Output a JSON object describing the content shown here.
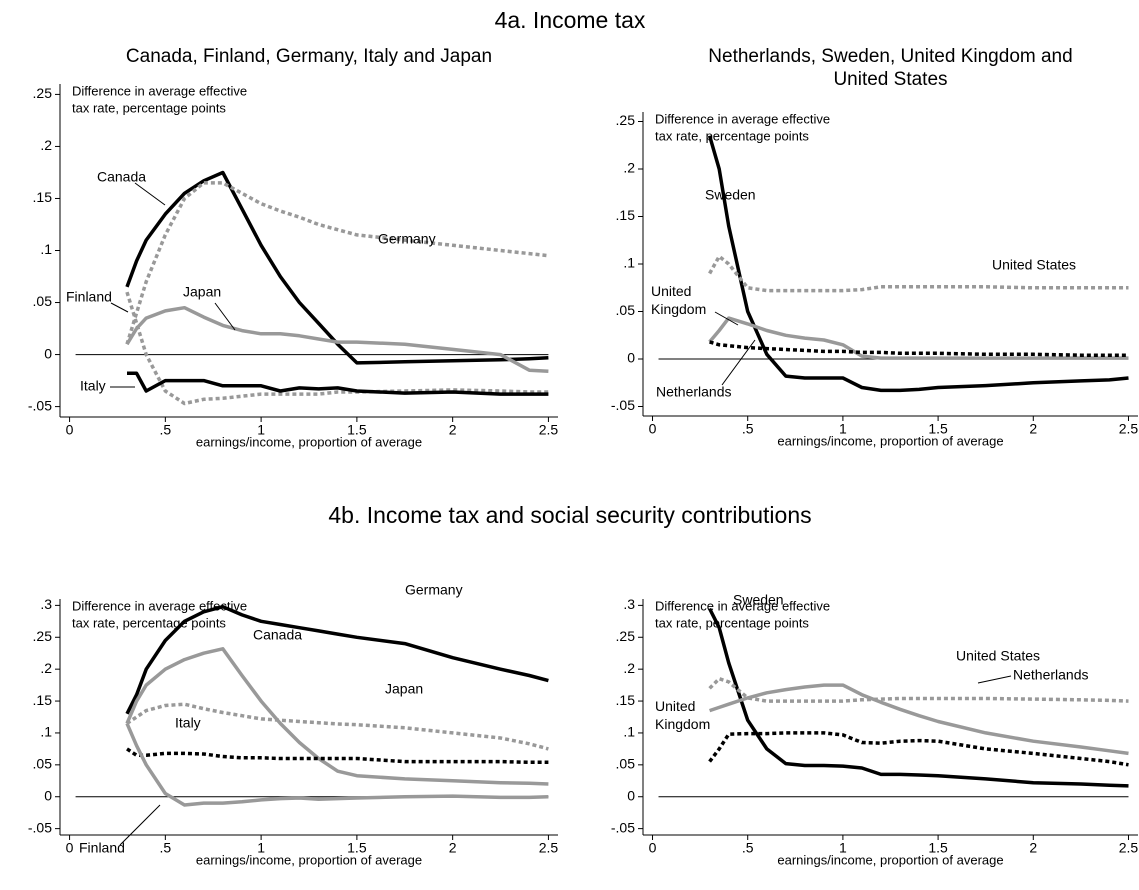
{
  "sections": [
    {
      "title": "4a. Income tax"
    },
    {
      "title": "4b. Income tax and social security contributions"
    }
  ],
  "chart_data": [
    {
      "type": "line",
      "subtitle": "Canada, Finland, Germany, Italy and Japan",
      "annotation": [
        "Difference in average effective",
        "tax rate, percentage points"
      ],
      "xlabel": "earnings/income, proportion of average",
      "x": [
        0.3,
        0.35,
        0.4,
        0.5,
        0.6,
        0.7,
        0.8,
        0.9,
        1.0,
        1.1,
        1.2,
        1.3,
        1.4,
        1.5,
        1.75,
        2.0,
        2.25,
        2.4,
        2.5
      ],
      "xlim": [
        -0.05,
        2.55
      ],
      "xticks": [
        0,
        {
          "value": 0.5,
          "label": ".5"
        },
        1,
        1.5,
        2,
        2.5
      ],
      "ylim": [
        -0.06,
        0.26
      ],
      "yticks": [
        {
          "value": -0.05,
          "label": "-.05"
        },
        0,
        {
          "value": 0.05,
          "label": ".05"
        },
        {
          "value": 0.1,
          "label": ".1"
        },
        {
          "value": 0.15,
          "label": ".15"
        },
        {
          "value": 0.2,
          "label": ".2"
        },
        {
          "value": 0.25,
          "label": ".25"
        }
      ],
      "hline": 0,
      "series": [
        {
          "name": "Canada",
          "color": "#000000",
          "dashed": false,
          "values": [
            0.065,
            0.09,
            0.11,
            0.135,
            0.155,
            0.167,
            0.175,
            0.14,
            0.105,
            0.075,
            0.05,
            0.03,
            0.01,
            -0.008,
            -0.007,
            -0.006,
            -0.005,
            -0.004,
            -0.003
          ]
        },
        {
          "name": "Germany",
          "color": "#999999",
          "dashed": true,
          "values": [
            0.01,
            0.04,
            0.07,
            0.115,
            0.15,
            0.165,
            0.165,
            0.155,
            0.145,
            0.138,
            0.132,
            0.125,
            0.12,
            0.115,
            0.11,
            0.105,
            0.1,
            0.097,
            0.095
          ]
        },
        {
          "name": "Finland",
          "color": "#999999",
          "dashed": true,
          "values": [
            0.06,
            0.03,
            0.0,
            -0.035,
            -0.047,
            -0.043,
            -0.042,
            -0.04,
            -0.038,
            -0.038,
            -0.038,
            -0.038,
            -0.036,
            -0.036,
            -0.035,
            -0.034,
            -0.035,
            -0.036,
            -0.036
          ]
        },
        {
          "name": "Japan",
          "color": "#999999",
          "dashed": false,
          "values": [
            0.01,
            0.025,
            0.035,
            0.042,
            0.045,
            0.036,
            0.028,
            0.023,
            0.02,
            0.02,
            0.018,
            0.015,
            0.012,
            0.012,
            0.01,
            0.005,
            0.0,
            -0.015,
            -0.016
          ]
        },
        {
          "name": "Italy",
          "color": "#000000",
          "dashed": false,
          "values": [
            -0.018,
            -0.018,
            -0.035,
            -0.025,
            -0.025,
            -0.025,
            -0.03,
            -0.03,
            -0.03,
            -0.035,
            -0.032,
            -0.033,
            -0.032,
            -0.035,
            -0.037,
            -0.036,
            -0.038,
            -0.038,
            -0.038
          ]
        }
      ]
    },
    {
      "type": "line",
      "subtitle": [
        "Netherlands, Sweden, United Kingdom and",
        "United States"
      ],
      "annotation": [
        "Difference in average effective",
        "tax rate, percentage points"
      ],
      "xlabel": "earnings/income, proportion of average",
      "x": [
        0.3,
        0.35,
        0.4,
        0.5,
        0.6,
        0.7,
        0.8,
        0.9,
        1.0,
        1.1,
        1.2,
        1.3,
        1.4,
        1.5,
        1.75,
        2.0,
        2.25,
        2.4,
        2.5
      ],
      "xlim": [
        -0.05,
        2.55
      ],
      "xticks": [
        0,
        {
          "value": 0.5,
          "label": ".5"
        },
        1,
        1.5,
        2,
        2.5
      ],
      "ylim": [
        -0.06,
        0.26
      ],
      "yticks": [
        {
          "value": -0.05,
          "label": "-.05"
        },
        0,
        {
          "value": 0.05,
          "label": ".05"
        },
        {
          "value": 0.1,
          "label": ".1"
        },
        {
          "value": 0.15,
          "label": ".15"
        },
        {
          "value": 0.2,
          "label": ".2"
        },
        {
          "value": 0.25,
          "label": ".25"
        }
      ],
      "hline": 0,
      "series": [
        {
          "name": "Sweden",
          "color": "#000000",
          "dashed": false,
          "values": [
            0.235,
            0.2,
            0.14,
            0.05,
            0.005,
            -0.018,
            -0.02,
            -0.02,
            -0.02,
            -0.03,
            -0.033,
            -0.033,
            -0.032,
            -0.03,
            -0.028,
            -0.025,
            -0.023,
            -0.022,
            -0.02
          ]
        },
        {
          "name": "United States",
          "color": "#999999",
          "dashed": true,
          "values": [
            0.09,
            0.108,
            0.1,
            0.075,
            0.072,
            0.072,
            0.072,
            0.072,
            0.072,
            0.073,
            0.076,
            0.076,
            0.076,
            0.076,
            0.076,
            0.075,
            0.075,
            0.075,
            0.075
          ]
        },
        {
          "name": "United Kingdom",
          "color": "#999999",
          "dashed": false,
          "values": [
            0.018,
            0.03,
            0.043,
            0.037,
            0.03,
            0.025,
            0.022,
            0.02,
            0.015,
            0.003,
            0.001,
            0.001,
            0.001,
            0.001,
            0.001,
            0.001,
            0.001,
            0.001,
            0.001
          ]
        },
        {
          "name": "Netherlands",
          "color": "#000000",
          "dashed": true,
          "values": [
            0.018,
            0.015,
            0.014,
            0.012,
            0.011,
            0.01,
            0.009,
            0.008,
            0.008,
            0.007,
            0.007,
            0.006,
            0.006,
            0.006,
            0.005,
            0.005,
            0.004,
            0.004,
            0.004
          ]
        }
      ]
    },
    {
      "type": "line",
      "subtitle": null,
      "annotation": [
        "Difference in average effective",
        "tax rate, percentage points"
      ],
      "xlabel": "earnings/income, proportion of average",
      "x": [
        0.3,
        0.35,
        0.4,
        0.5,
        0.6,
        0.7,
        0.8,
        0.9,
        1.0,
        1.1,
        1.2,
        1.3,
        1.4,
        1.5,
        1.75,
        2.0,
        2.25,
        2.4,
        2.5
      ],
      "xlim": [
        -0.05,
        2.55
      ],
      "xticks": [
        0,
        {
          "value": 0.5,
          "label": ".5"
        },
        1,
        1.5,
        2,
        2.5
      ],
      "ylim": [
        -0.06,
        0.31
      ],
      "yticks": [
        {
          "value": -0.05,
          "label": "-.05"
        },
        0,
        {
          "value": 0.05,
          "label": ".05"
        },
        {
          "value": 0.1,
          "label": ".1"
        },
        {
          "value": 0.15,
          "label": ".15"
        },
        {
          "value": 0.2,
          "label": ".2"
        },
        {
          "value": 0.25,
          "label": ".25"
        },
        {
          "value": 0.3,
          "label": ".3"
        }
      ],
      "hline": 0,
      "series": [
        {
          "name": "Germany",
          "color": "#000000",
          "dashed": false,
          "values": [
            0.13,
            0.16,
            0.2,
            0.245,
            0.275,
            0.29,
            0.298,
            0.285,
            0.275,
            0.27,
            0.265,
            0.26,
            0.255,
            0.25,
            0.24,
            0.218,
            0.2,
            0.19,
            0.182
          ]
        },
        {
          "name": "Canada",
          "color": "#999999",
          "dashed": false,
          "values": [
            0.115,
            0.15,
            0.175,
            0.2,
            0.215,
            0.225,
            0.232,
            0.19,
            0.15,
            0.115,
            0.085,
            0.06,
            0.04,
            0.033,
            0.028,
            0.025,
            0.022,
            0.021,
            0.02
          ]
        },
        {
          "name": "Japan",
          "color": "#999999",
          "dashed": true,
          "values": [
            0.115,
            0.125,
            0.135,
            0.143,
            0.145,
            0.138,
            0.132,
            0.127,
            0.122,
            0.12,
            0.118,
            0.116,
            0.114,
            0.113,
            0.108,
            0.1,
            0.092,
            0.083,
            0.075
          ]
        },
        {
          "name": "Italy",
          "color": "#000000",
          "dashed": true,
          "values": [
            0.075,
            0.065,
            0.065,
            0.068,
            0.068,
            0.067,
            0.063,
            0.061,
            0.061,
            0.06,
            0.06,
            0.06,
            0.06,
            0.06,
            0.055,
            0.055,
            0.055,
            0.054,
            0.054
          ]
        },
        {
          "name": "Finland",
          "color": "#999999",
          "dashed": false,
          "values": [
            0.115,
            0.08,
            0.05,
            0.005,
            -0.013,
            -0.01,
            -0.01,
            -0.008,
            -0.005,
            -0.003,
            -0.002,
            -0.004,
            -0.003,
            -0.002,
            0.0,
            0.001,
            -0.001,
            -0.001,
            0.0
          ]
        }
      ]
    },
    {
      "type": "line",
      "subtitle": null,
      "annotation": [
        "Difference in average effective",
        "tax rate, percentage points"
      ],
      "xlabel": "earnings/income, proportion of average",
      "x": [
        0.3,
        0.35,
        0.4,
        0.5,
        0.6,
        0.7,
        0.8,
        0.9,
        1.0,
        1.1,
        1.2,
        1.3,
        1.4,
        1.5,
        1.75,
        2.0,
        2.25,
        2.4,
        2.5
      ],
      "xlim": [
        -0.05,
        2.55
      ],
      "xticks": [
        0,
        {
          "value": 0.5,
          "label": ".5"
        },
        1,
        1.5,
        2,
        2.5
      ],
      "ylim": [
        -0.06,
        0.31
      ],
      "yticks": [
        {
          "value": -0.05,
          "label": "-.05"
        },
        0,
        {
          "value": 0.05,
          "label": ".05"
        },
        {
          "value": 0.1,
          "label": ".1"
        },
        {
          "value": 0.15,
          "label": ".15"
        },
        {
          "value": 0.2,
          "label": ".2"
        },
        {
          "value": 0.25,
          "label": ".25"
        },
        {
          "value": 0.3,
          "label": ".3"
        }
      ],
      "hline": 0,
      "series": [
        {
          "name": "Sweden",
          "color": "#000000",
          "dashed": false,
          "values": [
            0.295,
            0.265,
            0.21,
            0.12,
            0.075,
            0.052,
            0.049,
            0.049,
            0.048,
            0.045,
            0.035,
            0.035,
            0.034,
            0.033,
            0.028,
            0.022,
            0.02,
            0.018,
            0.017
          ]
        },
        {
          "name": "United States",
          "color": "#999999",
          "dashed": true,
          "values": [
            0.17,
            0.185,
            0.18,
            0.155,
            0.15,
            0.15,
            0.15,
            0.15,
            0.15,
            0.152,
            0.153,
            0.154,
            0.154,
            0.154,
            0.154,
            0.153,
            0.152,
            0.151,
            0.15
          ]
        },
        {
          "name": "Netherlands",
          "color": "#999999",
          "dashed": false,
          "values": [
            0.135,
            0.14,
            0.145,
            0.155,
            0.163,
            0.168,
            0.172,
            0.175,
            0.175,
            0.16,
            0.148,
            0.137,
            0.127,
            0.118,
            0.1,
            0.087,
            0.078,
            0.072,
            0.068
          ]
        },
        {
          "name": "United Kingdom",
          "color": "#000000",
          "dashed": true,
          "values": [
            0.055,
            0.075,
            0.098,
            0.099,
            0.099,
            0.1,
            0.1,
            0.1,
            0.097,
            0.085,
            0.084,
            0.087,
            0.088,
            0.087,
            0.075,
            0.068,
            0.06,
            0.055,
            0.05
          ]
        }
      ]
    }
  ]
}
